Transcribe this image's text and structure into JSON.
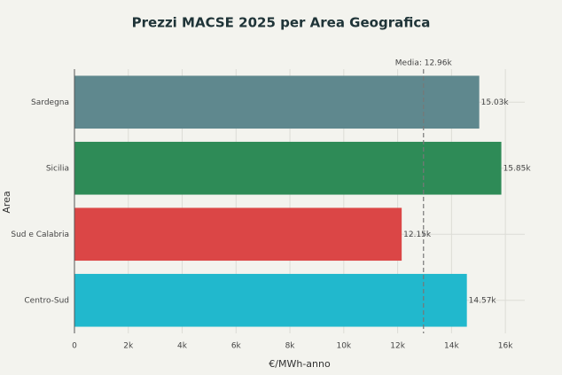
{
  "chart_data": {
    "type": "hbar",
    "title": "Prezzi MACSE 2025 per Area Geografica",
    "y_label": "Area",
    "x_label": "€/MWh-anno",
    "categories": [
      "Sardegna",
      "Sicilia",
      "Sud e Calabria",
      "Centro-Sud"
    ],
    "values": [
      15030,
      15850,
      12150,
      14570
    ],
    "value_labels": [
      "15.03k",
      "15.85k",
      "12.15k",
      "14.57k"
    ],
    "colors": [
      "#5f888e",
      "#2e8b57",
      "#db4646",
      "#21b8cd"
    ],
    "xlim": [
      0,
      16720
    ],
    "xticks": [
      0,
      {
        "value": 2000,
        "label": "2k"
      },
      {
        "value": 4000,
        "label": "4k"
      },
      {
        "value": 6000,
        "label": "6k"
      },
      {
        "value": 8000,
        "label": "8k"
      },
      {
        "value": 10000,
        "label": "10k"
      },
      {
        "value": 12000,
        "label": "12k"
      },
      {
        "value": 14000,
        "label": "14k"
      },
      {
        "value": 16000,
        "label": "16k"
      }
    ],
    "reference_line": {
      "value": 12960,
      "label": "Media: 12.96k"
    },
    "grid": true
  }
}
